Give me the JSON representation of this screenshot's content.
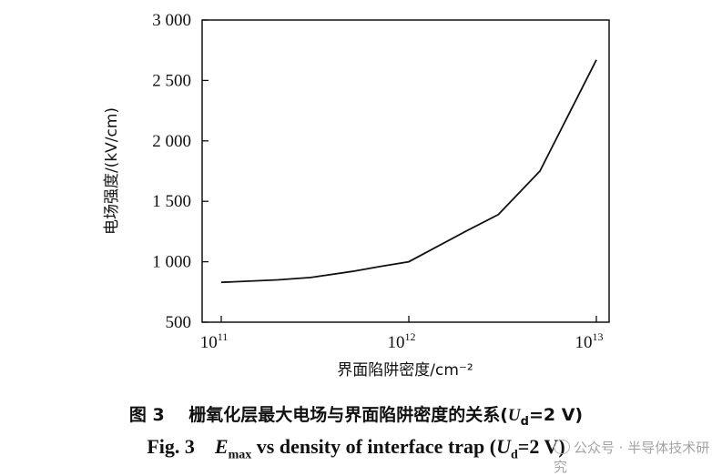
{
  "chart_data": {
    "type": "line",
    "ylabel": "电场强度/(kV/cm)",
    "xlabel": "界面陷阱密度/cm⁻²",
    "x_scale": "log",
    "xlim": [
      100000000000.0,
      10000000000000.0
    ],
    "ylim": [
      500,
      3000
    ],
    "yticks": [
      500,
      1000,
      1500,
      2000,
      2500,
      3000
    ],
    "ytick_labels": [
      "500",
      "1 000",
      "1 500",
      "2 000",
      "2 500",
      "3 000"
    ],
    "xticks": [
      100000000000.0,
      1000000000000.0,
      10000000000000.0
    ],
    "xtick_labels": [
      {
        "base": "10",
        "exp": "11"
      },
      {
        "base": "10",
        "exp": "12"
      },
      {
        "base": "10",
        "exp": "13"
      }
    ],
    "grid": false,
    "line_color": "#111111",
    "series": [
      {
        "x": [
          100000000000.0,
          200000000000.0,
          300000000000.0,
          500000000000.0,
          700000000000.0,
          1000000000000.0,
          2000000000000.0,
          3000000000000.0,
          5000000000000.0,
          10000000000000.0
        ],
        "y": [
          830,
          850,
          870,
          920,
          960,
          1000,
          1250,
          1390,
          1750,
          2670
        ]
      }
    ]
  },
  "caption": {
    "cn_number": "图 3",
    "cn_text": "栅氧化层最大电场与界面陷阱密度的关系(",
    "cn_sym": "U",
    "cn_sub": "d",
    "cn_end": "=2 V)",
    "en_number": "Fig. 3",
    "en_sym": "E",
    "en_sub": "max",
    "en_text": " vs density of interface trap (",
    "en_sym2": "U",
    "en_sub2": "d",
    "en_end": "=2 V)"
  },
  "watermark": {
    "text": "公众号 · 半导体技术研究"
  }
}
